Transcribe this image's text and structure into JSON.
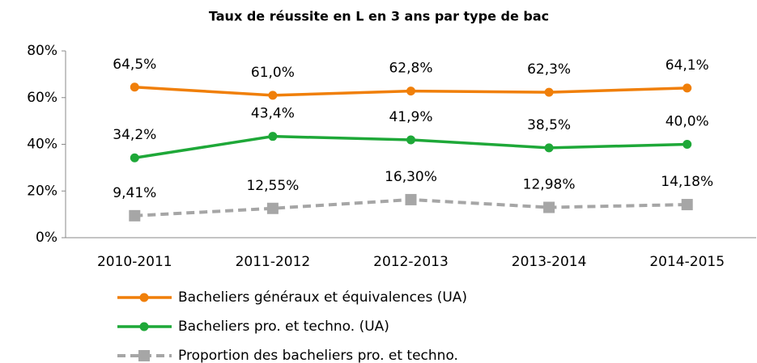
{
  "chart_data": {
    "type": "line",
    "title": "Taux de réussite en L en 3 ans par type de bac",
    "categories": [
      "2010-2011",
      "2011-2012",
      "2012-2013",
      "2013-2014",
      "2014-2015"
    ],
    "series": [
      {
        "name": "Bacheliers généraux et équivalences (UA)",
        "color": "#f07f09",
        "marker": "circle",
        "dashed": false,
        "values": [
          64.5,
          61.0,
          62.8,
          62.3,
          64.1
        ],
        "value_labels": [
          "64,5%",
          "61,0%",
          "62,8%",
          "62,3%",
          "64,1%"
        ]
      },
      {
        "name": "Bacheliers pro. et techno. (UA)",
        "color": "#1ea838",
        "marker": "circle",
        "dashed": false,
        "values": [
          34.2,
          43.4,
          41.9,
          38.5,
          40.0
        ],
        "value_labels": [
          "34,2%",
          "43,4%",
          "41,9%",
          "38,5%",
          "40,0%"
        ]
      },
      {
        "name": "Proportion des bacheliers pro. et techno.",
        "color": "#a6a6a6",
        "marker": "square",
        "dashed": true,
        "values": [
          9.41,
          12.55,
          16.3,
          12.98,
          14.18
        ],
        "value_labels": [
          "9,41%",
          "12,55%",
          "16,30%",
          "12,98%",
          "14,18%"
        ]
      }
    ],
    "ylim": [
      0,
      80
    ],
    "yticks": [
      {
        "value": 0,
        "label": "0%"
      },
      {
        "value": 20,
        "label": "20%"
      },
      {
        "value": 40,
        "label": "40%"
      },
      {
        "value": 60,
        "label": "60%"
      },
      {
        "value": 80,
        "label": "80%"
      }
    ],
    "grid": false,
    "legend": "bottom"
  }
}
